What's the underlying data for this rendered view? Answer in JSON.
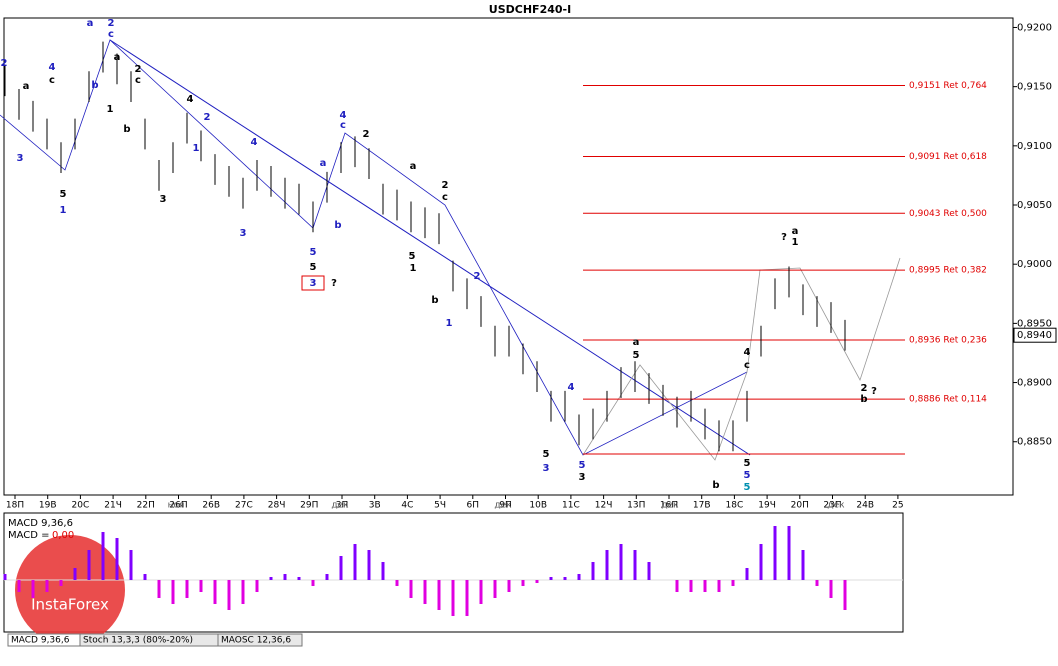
{
  "chart_data": {
    "type": "ohlc",
    "title": "USDCHF240-I",
    "categories": [
      "18П",
      "19В",
      "20С",
      "21Ч",
      "22П",
      "26П",
      "26В",
      "27С",
      "28Ч",
      "29П",
      "3П",
      "3В",
      "4С",
      "5Ч",
      "6П",
      "9П",
      "10В",
      "11С",
      "12Ч",
      "13П",
      "16П",
      "17В",
      "18С",
      "19Ч",
      "20П",
      "23П",
      "24В",
      "25"
    ],
    "month_labels": [
      "ноя",
      "дек",
      "дек",
      "дек",
      "дек"
    ],
    "high": [
      0.9168,
      0.9148,
      0.9138,
      0.9123,
      0.9103,
      0.9123,
      0.9163,
      0.9188,
      0.9178,
      0.9163,
      0.9123,
      0.9088,
      0.9103,
      0.9128,
      0.9113,
      0.9093,
      0.9083,
      0.9073,
      0.9088,
      0.9083,
      0.9073,
      0.9068,
      0.9053,
      0.9078,
      0.9103,
      0.9108,
      0.9098,
      0.9068,
      0.9063,
      0.9053,
      0.9048,
      0.9043,
      0.9003,
      0.8988,
      0.8973,
      0.8948,
      0.8948,
      0.8933,
      0.8918,
      0.8893,
      0.8893,
      0.8873,
      0.8878,
      0.8893,
      0.8913,
      0.8918,
      0.8908,
      0.8898,
      0.8888,
      0.8893,
      0.8878,
      0.8868,
      0.8868,
      0.8893,
      0.8948,
      0.8988,
      0.8998,
      0.8983,
      0.8973,
      0.8968,
      0.8953
    ],
    "low": [
      0.9142,
      0.9122,
      0.9112,
      0.9097,
      0.9077,
      0.9097,
      0.9137,
      0.9162,
      0.9152,
      0.9137,
      0.9097,
      0.9062,
      0.9077,
      0.9102,
      0.9087,
      0.9067,
      0.9057,
      0.9047,
      0.9062,
      0.9057,
      0.9047,
      0.9042,
      0.9027,
      0.9052,
      0.9077,
      0.9082,
      0.9072,
      0.9042,
      0.9037,
      0.9027,
      0.9022,
      0.9017,
      0.8977,
      0.8962,
      0.8947,
      0.8922,
      0.8922,
      0.8907,
      0.8892,
      0.8867,
      0.8867,
      0.8847,
      0.8852,
      0.8867,
      0.8887,
      0.8892,
      0.8882,
      0.8872,
      0.8862,
      0.8867,
      0.8852,
      0.8842,
      0.8842,
      0.8867,
      0.8922,
      0.8962,
      0.8972,
      0.8957,
      0.8947,
      0.8942,
      0.8927
    ],
    "color": "#000000",
    "ylim": [
      0.8805,
      0.9208
    ],
    "yticks": [
      {
        "value": 0.92,
        "label": "0,9200"
      },
      {
        "value": 0.915,
        "label": "0,9150"
      },
      {
        "value": 0.91,
        "label": "0,9100"
      },
      {
        "value": 0.905,
        "label": "0,9050"
      },
      {
        "value": 0.9,
        "label": "0,9000"
      },
      {
        "value": 0.895,
        "label": "0,8950"
      },
      {
        "value": 0.89,
        "label": "0,8900"
      },
      {
        "value": 0.885,
        "label": "0,8850"
      }
    ],
    "current_price": {
      "value": 0.894,
      "label": "0,8940"
    },
    "levels": [
      {
        "value": 0.9151,
        "label": "0,9151 Ret 0,764"
      },
      {
        "value": 0.9091,
        "label": "0,9091 Ret 0,618"
      },
      {
        "value": 0.9043,
        "label": "0,9043 Ret 0,500"
      },
      {
        "value": 0.8995,
        "label": "0,8995 Ret 0,382"
      },
      {
        "value": 0.8936,
        "label": "0,8936 Ret 0,236"
      },
      {
        "value": 0.8886,
        "label": "0,8886 Ret 0,114"
      }
    ],
    "level_color": "#e00000",
    "annotations": [
      "2",
      "a",
      "4",
      "c",
      "b",
      "a",
      "2",
      "c",
      "a",
      "1",
      "2",
      "c",
      "b",
      "3",
      "5",
      "1",
      "3",
      "4",
      "2",
      "1",
      "4",
      "3",
      "4",
      "c",
      "a",
      "b",
      "2",
      "5",
      "5",
      "?",
      "3",
      "a",
      "2",
      "c",
      "b",
      "1",
      "5",
      "1",
      "2",
      "4",
      "5",
      "3",
      "3",
      "5",
      "a",
      "5",
      "4",
      "c",
      "5",
      "5",
      "5",
      "b",
      "?",
      "a",
      "1",
      "2",
      "b",
      "?"
    ],
    "indicator": {
      "type": "bar",
      "title": "MACD 9,36,6",
      "value_name": "MACD =",
      "value_label": "0,00",
      "positive_color": "#8000ff",
      "negative_color": "#e000e0",
      "values": [
        0.1,
        -0.2,
        -0.3,
        -0.2,
        -0.1,
        0.2,
        0.5,
        0.8,
        0.7,
        0.5,
        0.1,
        -0.3,
        -0.4,
        -0.3,
        -0.2,
        -0.4,
        -0.5,
        -0.4,
        -0.2,
        0.05,
        0.1,
        0.05,
        -0.1,
        0.1,
        0.4,
        0.6,
        0.5,
        0.3,
        -0.1,
        -0.3,
        -0.4,
        -0.5,
        -0.6,
        -0.6,
        -0.4,
        -0.3,
        -0.2,
        -0.1,
        -0.05,
        0.05,
        0.05,
        0.1,
        0.3,
        0.5,
        0.6,
        0.5,
        0.3,
        0.0,
        -0.2,
        -0.2,
        -0.2,
        -0.2,
        -0.1,
        0.2,
        0.6,
        0.9,
        0.9,
        0.5,
        -0.1,
        -0.3,
        -0.5
      ],
      "ylim": [
        -1,
        1
      ]
    },
    "tabs": [
      "MACD 9,36,6",
      "Stoch 13,3,3 (80%-20%)",
      "MAOSC 12,36,6"
    ],
    "watermark": "InstaForex"
  }
}
